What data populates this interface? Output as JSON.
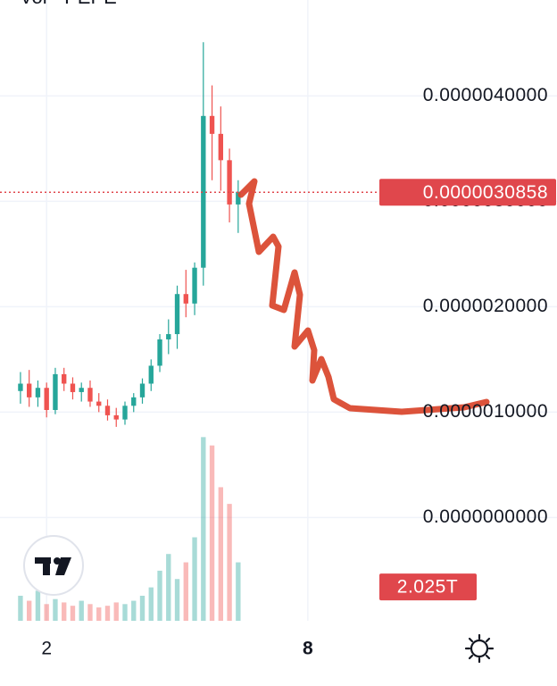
{
  "chart_data": {
    "type": "candlestick",
    "title": "Vol · PEPE",
    "x": [
      1.4,
      1.6,
      1.8,
      2.0,
      2.2,
      2.4,
      2.6,
      2.8,
      3.0,
      3.2,
      3.4,
      3.6,
      3.8,
      4.0,
      4.2,
      4.4,
      4.6,
      4.8,
      5.0,
      5.2,
      5.4,
      5.6,
      5.8,
      6.0,
      6.2,
      6.4
    ],
    "open": [
      1.2e-06,
      1.27e-06,
      1.14e-06,
      1.23e-06,
      1.02e-06,
      1.36e-06,
      1.27e-06,
      1.19e-06,
      1.23e-06,
      1.1e-06,
      1.06e-06,
      9.7e-07,
      9.3e-07,
      1.06e-06,
      1.14e-06,
      1.27e-06,
      1.44e-06,
      1.69e-06,
      1.74e-06,
      2.12e-06,
      2.03e-06,
      2.37e-06,
      3.81e-06,
      3.64e-06,
      3.39e-06,
      2.97e-06
    ],
    "high": [
      1.38e-06,
      1.4e-06,
      1.3e-06,
      1.28e-06,
      1.42e-06,
      1.42e-06,
      1.33e-06,
      1.28e-06,
      1.3e-06,
      1.18e-06,
      1.12e-06,
      1.04e-06,
      1.1e-06,
      1.18e-06,
      1.32e-06,
      1.5e-06,
      1.74e-06,
      1.88e-06,
      2.2e-06,
      2.35e-06,
      2.42e-06,
      4.51e-06,
      4.1e-06,
      3.9e-06,
      3.5e-06,
      3.2e-06
    ],
    "low": [
      1.08e-06,
      1.05e-06,
      1.05e-06,
      9.5e-07,
      9.8e-07,
      1.2e-06,
      1.12e-06,
      1.1e-06,
      1.05e-06,
      1e-06,
      9.2e-07,
      8.6e-07,
      8.8e-07,
      1e-06,
      1.08e-06,
      1.2e-06,
      1.38e-06,
      1.55e-06,
      1.6e-06,
      1.9e-06,
      1.92e-06,
      2.2e-06,
      3.2e-06,
      3.1e-06,
      2.8e-06,
      2.7e-06
    ],
    "close": [
      1.27e-06,
      1.14e-06,
      1.23e-06,
      1.02e-06,
      1.36e-06,
      1.27e-06,
      1.19e-06,
      1.23e-06,
      1.1e-06,
      1.06e-06,
      9.7e-07,
      9.3e-07,
      1.06e-06,
      1.14e-06,
      1.27e-06,
      1.44e-06,
      1.69e-06,
      1.74e-06,
      2.12e-06,
      2.03e-06,
      2.37e-06,
      3.81e-06,
      3.64e-06,
      3.39e-06,
      2.97e-06,
      3.09e-06
    ],
    "up_color": "#26a69a",
    "down_color": "#ef5350",
    "xlim": [
      0.93,
      9.54
    ],
    "xticks": [
      2,
      8
    ],
    "ylim": [
      -9.8e-07,
      4.91e-06
    ],
    "yticks": [
      {
        "value": 0,
        "label": "0.0000000000"
      },
      {
        "value": 1e-06,
        "label": "0.0000010000"
      },
      {
        "value": 2e-06,
        "label": "0.0000020000"
      },
      {
        "value": 3e-06,
        "label": "0.0000030000"
      },
      {
        "value": 4e-06,
        "label": "0.0000040000"
      }
    ],
    "grid": true,
    "last_price": {
      "value": 3.0858e-06,
      "label": "0.0000030858",
      "color": "#e0474c"
    },
    "volume": {
      "values": [
        1.5,
        1.2,
        1.8,
        1.0,
        1.3,
        1.1,
        0.9,
        1.2,
        1.0,
        0.8,
        0.9,
        1.1,
        1.0,
        1.2,
        1.5,
        2.0,
        3.0,
        4.0,
        2.5,
        3.5,
        5.0,
        11.0,
        10.5,
        8.0,
        7.0,
        3.5
      ],
      "vlim": [
        0,
        11.5
      ],
      "last": {
        "value": 2.025,
        "label": "2.025T"
      }
    }
  }
}
